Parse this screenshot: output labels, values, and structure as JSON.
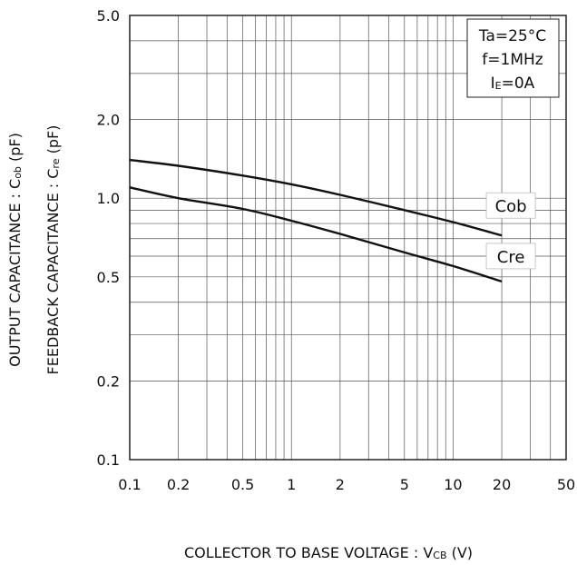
{
  "chart_data": {
    "type": "line",
    "x_scale": "log",
    "y_scale": "log",
    "xlim": [
      0.1,
      50
    ],
    "ylim": [
      0.1,
      5.0
    ],
    "grid": true,
    "x_ticks": [
      0.1,
      0.2,
      0.5,
      1,
      2,
      5,
      10,
      20,
      50
    ],
    "x_tick_labels": [
      "0.1",
      "0.2",
      "0.5",
      "1",
      "2",
      "5",
      "10",
      "20",
      "50"
    ],
    "y_ticks": [
      0.1,
      0.2,
      0.5,
      1.0,
      2.0,
      5.0
    ],
    "y_tick_labels": [
      "0.1",
      "0.2",
      "0.5",
      "1.0",
      "2.0",
      "5.0"
    ],
    "xlabel": {
      "main": "COLLECTOR  TO BASE VOLTAGE : V",
      "sub": "CB",
      "unit": " (V)"
    },
    "ylabel_lines": [
      {
        "main": "OUTPUT CAPACITANCE : C",
        "sub": "ob",
        "unit": " (pF)"
      },
      {
        "main": "FEEDBACK CAPACITANCE : C",
        "sub": "re",
        "unit": " (pF)"
      }
    ],
    "conditions": [
      "Ta=25°C",
      "f=1MHz",
      {
        "main": "I",
        "sub": "E",
        "rest": "=0A"
      }
    ],
    "series": [
      {
        "name": "Cob",
        "x": [
          0.1,
          0.2,
          0.5,
          1,
          2,
          5,
          10,
          20
        ],
        "y": [
          1.4,
          1.33,
          1.22,
          1.13,
          1.03,
          0.9,
          0.81,
          0.72
        ]
      },
      {
        "name": "Cre",
        "x": [
          0.1,
          0.2,
          0.5,
          1,
          2,
          5,
          10,
          20
        ],
        "y": [
          1.1,
          1.0,
          0.91,
          0.82,
          0.73,
          0.62,
          0.55,
          0.48
        ]
      }
    ],
    "line_color": "#111111",
    "grid_color": "#555555"
  }
}
